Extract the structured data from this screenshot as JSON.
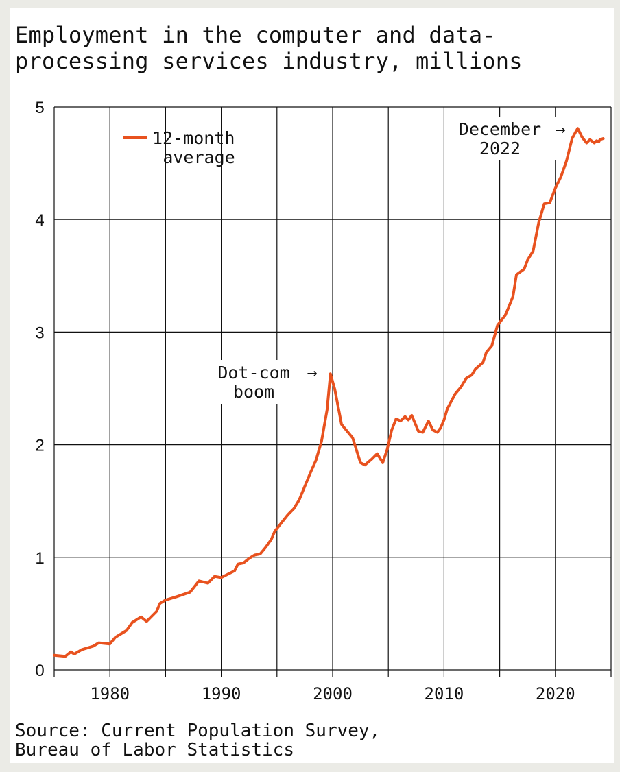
{
  "title_lines": [
    "Employment in the computer and data-",
    "processing services industry, millions"
  ],
  "source_lines": [
    "Source: Current Population Survey,",
    "Bureau of Labor Statistics"
  ],
  "colors": {
    "line": "#e8521f",
    "grid": "#111111",
    "background": "#ffffff",
    "page": "#ebebe6"
  },
  "chart_data": {
    "type": "line",
    "title": "Employment in the computer and data-processing services industry, millions",
    "xlabel": "",
    "ylabel": "",
    "xlim": [
      1975,
      2025
    ],
    "ylim": [
      0,
      5
    ],
    "grid": true,
    "x_ticks": [
      1980,
      1990,
      2000,
      2010,
      2020
    ],
    "y_ticks": [
      0,
      1,
      2,
      3,
      4,
      5
    ],
    "legend": {
      "label_lines": [
        "12-month",
        "average"
      ],
      "placement": "top-left"
    },
    "series": [
      {
        "name": "12-month average",
        "x": [
          1975.0,
          1976.0,
          1976.5,
          1976.8,
          1977.5,
          1978.5,
          1979.0,
          1980.0,
          1980.5,
          1981.5,
          1982.0,
          1982.8,
          1983.3,
          1984.2,
          1984.5,
          1985.0,
          1986.0,
          1987.2,
          1988.0,
          1988.8,
          1989.4,
          1990.0,
          1991.2,
          1991.5,
          1992.0,
          1992.5,
          1993.0,
          1993.5,
          1994.0,
          1994.5,
          1994.8,
          1995.2,
          1996.0,
          1996.5,
          1997.0,
          1997.5,
          1998.0,
          1998.5,
          1999.0,
          1999.5,
          1999.8,
          2000.2,
          2000.8,
          2001.8,
          2002.5,
          2002.9,
          2003.5,
          2004.0,
          2004.5,
          2004.9,
          2005.3,
          2005.7,
          2006.1,
          2006.5,
          2006.8,
          2007.1,
          2007.4,
          2007.7,
          2008.1,
          2008.6,
          2009.0,
          2009.4,
          2009.7,
          2010.0,
          2010.3,
          2011.0,
          2011.5,
          2012.0,
          2012.5,
          2012.8,
          2013.5,
          2013.8,
          2014.3,
          2014.8,
          2015.5,
          2015.8,
          2016.2,
          2016.5,
          2017.2,
          2017.5,
          2018.0,
          2018.5,
          2019.0,
          2019.5,
          2020.0,
          2020.5,
          2021.0,
          2021.5,
          2022.0,
          2022.4,
          2022.8,
          2023.1,
          2023.5,
          2023.7,
          2023.9,
          2024.0,
          2024.3
        ],
        "values": [
          0.13,
          0.12,
          0.16,
          0.14,
          0.18,
          0.21,
          0.24,
          0.23,
          0.29,
          0.35,
          0.42,
          0.47,
          0.43,
          0.52,
          0.59,
          0.62,
          0.65,
          0.69,
          0.79,
          0.77,
          0.83,
          0.82,
          0.88,
          0.94,
          0.95,
          0.99,
          1.02,
          1.03,
          1.09,
          1.16,
          1.23,
          1.28,
          1.38,
          1.43,
          1.51,
          1.63,
          1.75,
          1.86,
          2.03,
          2.31,
          2.63,
          2.49,
          2.18,
          2.06,
          1.84,
          1.82,
          1.87,
          1.92,
          1.84,
          1.96,
          2.13,
          2.23,
          2.21,
          2.25,
          2.22,
          2.26,
          2.19,
          2.12,
          2.11,
          2.21,
          2.13,
          2.11,
          2.15,
          2.22,
          2.32,
          2.45,
          2.51,
          2.59,
          2.62,
          2.67,
          2.73,
          2.82,
          2.88,
          3.06,
          3.15,
          3.22,
          3.32,
          3.51,
          3.56,
          3.64,
          3.72,
          3.97,
          4.14,
          4.15,
          4.28,
          4.38,
          4.52,
          4.72,
          4.81,
          4.73,
          4.68,
          4.71,
          4.68,
          4.7,
          4.69,
          4.71,
          4.72
        ]
      }
    ],
    "annotations": [
      {
        "lines": [
          "Dot-com",
          "boom"
        ],
        "arrow": "→",
        "x": 2000,
        "y": 2.63
      },
      {
        "lines": [
          "December",
          "2022"
        ],
        "arrow": "→",
        "x": 2022.8,
        "y": 4.81
      }
    ]
  }
}
